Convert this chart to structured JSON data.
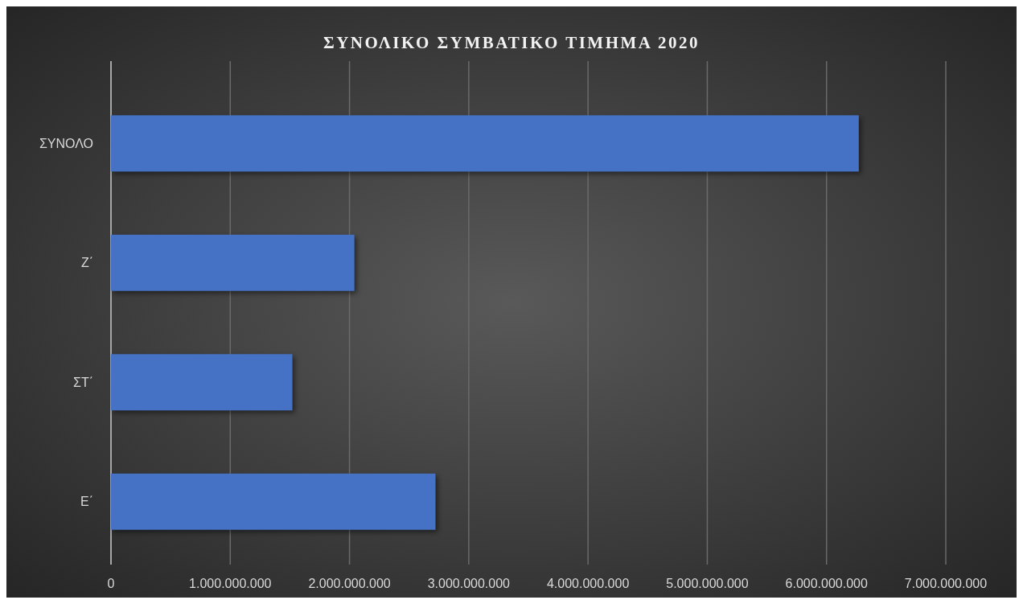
{
  "chart_data": {
    "type": "bar",
    "orientation": "horizontal",
    "title": "ΣΥΝΟΛΙΚΟ ΣΥΜΒΑΤΙΚΟ ΤΙΜΗΜΑ 2020",
    "categories": [
      "ΣΥΝΟΛΟ",
      "Ζ΄",
      "ΣΤ΄",
      "Ε΄"
    ],
    "values": [
      6270000000,
      2040000000,
      1520000000,
      2720000000
    ],
    "color": "#4472c4",
    "xlim": [
      0,
      7000000000
    ],
    "xticks": [
      0,
      {
        "value": 1000000000,
        "label": "1.000.000.000"
      },
      {
        "value": 2000000000,
        "label": "2.000.000.000"
      },
      {
        "value": 3000000000,
        "label": "3.000.000.000"
      },
      {
        "value": 4000000000,
        "label": "4.000.000.000"
      },
      {
        "value": 5000000000,
        "label": "5.000.000.000"
      },
      {
        "value": 6000000000,
        "label": "6.000.000.000"
      },
      {
        "value": 7000000000,
        "label": "7.000.000.000"
      }
    ],
    "grid": "x"
  }
}
